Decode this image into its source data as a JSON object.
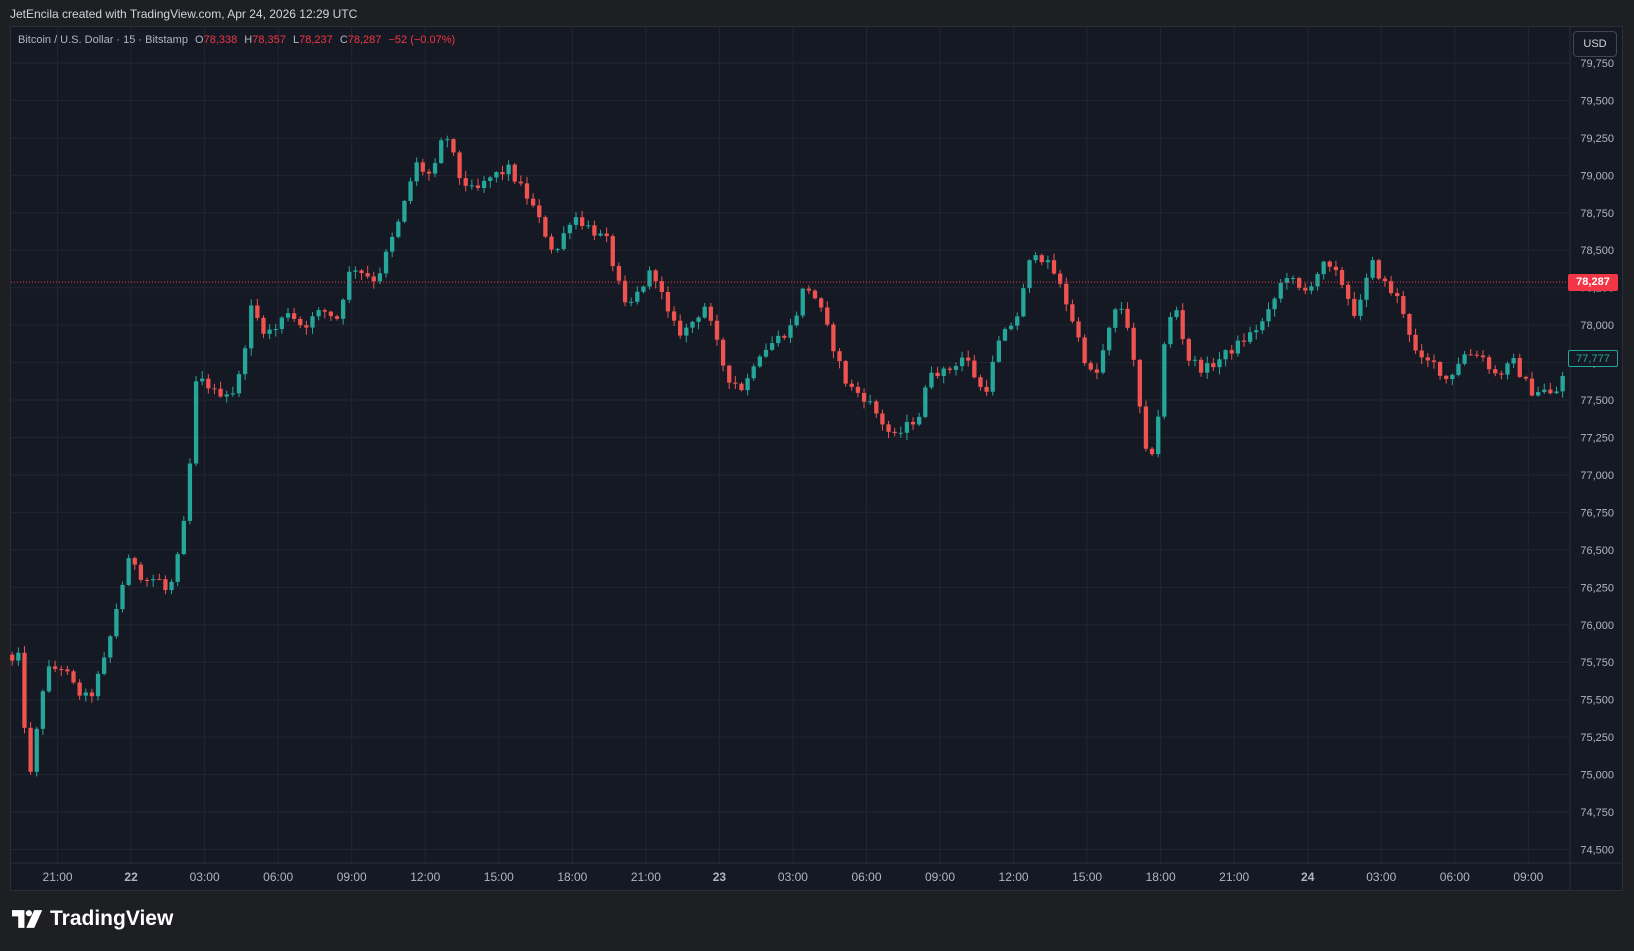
{
  "header": {
    "attribution": "JetEncila created with TradingView.com, Apr 24, 2026 12:29 UTC"
  },
  "legend": {
    "symbol": "Bitcoin / U.S. Dollar · 15 · Bitstamp",
    "open_label": "O",
    "open": "78,338",
    "high_label": "H",
    "high": "78,357",
    "low_label": "L",
    "low": "78,237",
    "close_label": "C",
    "close": "78,287",
    "change": "−52 (−0.07%)"
  },
  "currency_button": "USD",
  "last_price_label": "78,287",
  "marker_price_label": "77,777",
  "brand": {
    "name": "TradingView",
    "icon": "tradingview-logo-icon"
  },
  "colors": {
    "up": "#26a69a",
    "down": "#ef5350",
    "background": "#151924",
    "grid": "#232631",
    "last_price": "#f23645"
  },
  "chart_data": {
    "type": "candlestick",
    "title": "Bitcoin / U.S. Dollar · 15 · Bitstamp",
    "interval": "15",
    "grid": true,
    "y_ticks": [
      "79,750",
      "79,500",
      "79,250",
      "79,000",
      "78,750",
      "78,500",
      "78,250",
      "78,000",
      "77,750",
      "77,500",
      "77,250",
      "77,000",
      "76,750",
      "76,500",
      "76,250",
      "76,000",
      "75,750",
      "75,500",
      "75,250",
      "75,000",
      "74,750",
      "74,500"
    ],
    "y_tick_values": [
      79750,
      79500,
      79250,
      79000,
      78750,
      78500,
      78250,
      78000,
      77750,
      77500,
      77250,
      77000,
      76750,
      76500,
      76250,
      76000,
      75750,
      75500,
      75250,
      75000,
      74750,
      74500
    ],
    "ylim": [
      74410,
      79990
    ],
    "x_ticks": [
      "21:00",
      "22",
      "03:00",
      "06:00",
      "09:00",
      "12:00",
      "15:00",
      "18:00",
      "21:00",
      "23",
      "03:00",
      "06:00",
      "09:00",
      "12:00",
      "15:00",
      "18:00",
      "21:00",
      "24",
      "03:00",
      "06:00",
      "09:00"
    ],
    "x_tick_hours": [
      0,
      3,
      6,
      9,
      12,
      15,
      18,
      21,
      24,
      27,
      30,
      33,
      36,
      39,
      42,
      45,
      48,
      51,
      54,
      57,
      60
    ],
    "xlim_hours": [
      -1.9,
      61.7
    ],
    "bar_interval_minutes": 15,
    "last_price": 78287,
    "marker_price": 77777,
    "anchor_hours": [
      -1.85,
      -1.5,
      -1.2,
      -0.5,
      0.2,
      0.8,
      1.3,
      2.0,
      2.5,
      3.0,
      3.5,
      4.1,
      4.5,
      4.8,
      5.3,
      5.6,
      6.0,
      6.4,
      7.3,
      8.0,
      8.2,
      8.8,
      9.4,
      10.0,
      10.8,
      11.4,
      12.0,
      13.0,
      14.0,
      14.6,
      15.0,
      15.3,
      15.8,
      16.4,
      17.0,
      17.7,
      18.4,
      19.3,
      20.3,
      21.0,
      22.4,
      23.2,
      24.3,
      25.0,
      25.5,
      26.4,
      27.3,
      28.0,
      28.5,
      29.3,
      30.0,
      30.5,
      31.0,
      32.2,
      33.0,
      34.1,
      35.2,
      35.6,
      36.2,
      37.0,
      37.8,
      38.4,
      39.2,
      39.8,
      40.7,
      41.3,
      41.9,
      42.3,
      42.8,
      43.3,
      43.7,
      44.5,
      44.9,
      45.2,
      45.6,
      46.1,
      46.8,
      47.7,
      48.6,
      49.3,
      50.1,
      50.8,
      51.6,
      52.3,
      53.0,
      53.6,
      54.2,
      54.8,
      55.5,
      56.2,
      56.7,
      57.3,
      58.0,
      58.7,
      59.4,
      60.1,
      60.6,
      61.0,
      61.3,
      61.5
    ],
    "anchor_prices": [
      75750,
      75790,
      74880,
      75690,
      75720,
      75550,
      75500,
      75800,
      76190,
      76470,
      76300,
      76310,
      76200,
      76350,
      76800,
      77600,
      77630,
      77550,
      77560,
      78200,
      77990,
      77950,
      78100,
      77990,
      78100,
      78050,
      78400,
      78300,
      78720,
      79080,
      79020,
      78990,
      79300,
      78990,
      78880,
      78990,
      79040,
      78820,
      78470,
      78740,
      78560,
      78090,
      78380,
      78020,
      77940,
      78130,
      77660,
      77570,
      77800,
      77900,
      78000,
      78280,
      78160,
      77600,
      77510,
      77240,
      77410,
      77710,
      77680,
      77800,
      77530,
      77880,
      78080,
      78520,
      78340,
      78090,
      77780,
      77620,
      77910,
      78160,
      77980,
      77020,
      77400,
      77950,
      78140,
      77780,
      77700,
      77810,
      77930,
      78040,
      78350,
      78200,
      78400,
      78320,
      78050,
      78420,
      78260,
      78150,
      77760,
      77740,
      77630,
      77800,
      77820,
      77660,
      77750,
      77560,
      77570,
      77520,
      77600,
      77710
    ]
  }
}
